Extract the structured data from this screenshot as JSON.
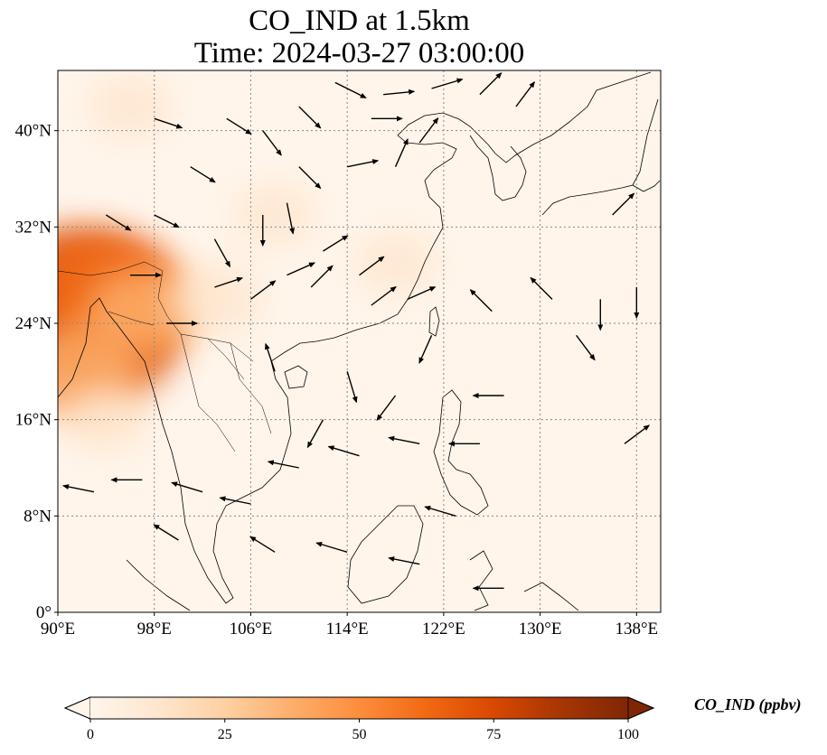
{
  "title": {
    "line1": "CO_IND at 1.5km",
    "line2": "Time: 2024-03-27 03:00:00"
  },
  "map": {
    "lon_range": [
      90,
      140
    ],
    "lat_range": [
      0,
      45
    ],
    "lon_ticks": [
      {
        "value": 90,
        "label": "90°E"
      },
      {
        "value": 98,
        "label": "98°E"
      },
      {
        "value": 106,
        "label": "106°E"
      },
      {
        "value": 114,
        "label": "114°E"
      },
      {
        "value": 122,
        "label": "122°E"
      },
      {
        "value": 130,
        "label": "130°E"
      },
      {
        "value": 138,
        "label": "138°E"
      }
    ],
    "lat_ticks": [
      {
        "value": 0,
        "label": "0°"
      },
      {
        "value": 8,
        "label": "8°N"
      },
      {
        "value": 16,
        "label": "16°N"
      },
      {
        "value": 24,
        "label": "24°N"
      },
      {
        "value": 32,
        "label": "32°N"
      },
      {
        "value": 40,
        "label": "40°N"
      }
    ],
    "gridlines": true,
    "concentration_field": [
      {
        "lon": 91.5,
        "lat": 26,
        "value": 80
      },
      {
        "lon": 93,
        "lat": 23,
        "value": 70
      },
      {
        "lon": 94,
        "lat": 26.5,
        "value": 58
      },
      {
        "lon": 92,
        "lat": 20,
        "value": 38
      },
      {
        "lon": 97,
        "lat": 25,
        "value": 32
      },
      {
        "lon": 103,
        "lat": 26,
        "value": 16
      },
      {
        "lon": 94,
        "lat": 16,
        "value": 10
      },
      {
        "lon": 108,
        "lat": 33,
        "value": 8
      },
      {
        "lon": 118,
        "lat": 29,
        "value": 7
      },
      {
        "lon": 96,
        "lat": 42,
        "value": 9
      }
    ],
    "wind_vectors": [
      {
        "lon": 113,
        "lat": 44,
        "u": 1,
        "v": -0.5
      },
      {
        "lon": 117,
        "lat": 43,
        "u": 1,
        "v": 0.1
      },
      {
        "lon": 121,
        "lat": 43.5,
        "u": 1,
        "v": 0.3
      },
      {
        "lon": 125,
        "lat": 43,
        "u": 0.7,
        "v": 0.7
      },
      {
        "lon": 128,
        "lat": 42,
        "u": 0.6,
        "v": 0.8
      },
      {
        "lon": 116,
        "lat": 41,
        "u": 1,
        "v": 0
      },
      {
        "lon": 120,
        "lat": 39,
        "u": 0.6,
        "v": 0.8
      },
      {
        "lon": 110,
        "lat": 42,
        "u": 0.7,
        "v": -0.7
      },
      {
        "lon": 104,
        "lat": 41,
        "u": 0.8,
        "v": -0.5
      },
      {
        "lon": 98,
        "lat": 41,
        "u": 0.9,
        "v": -0.3
      },
      {
        "lon": 101,
        "lat": 37,
        "u": 0.8,
        "v": -0.5
      },
      {
        "lon": 107,
        "lat": 40,
        "u": 0.6,
        "v": -0.8
      },
      {
        "lon": 110,
        "lat": 37,
        "u": 0.7,
        "v": -0.7
      },
      {
        "lon": 114,
        "lat": 37,
        "u": 1,
        "v": 0.2
      },
      {
        "lon": 118,
        "lat": 37,
        "u": 0.4,
        "v": 0.9
      },
      {
        "lon": 107,
        "lat": 33,
        "u": 0,
        "v": -1
      },
      {
        "lon": 109,
        "lat": 34,
        "u": 0.2,
        "v": -1
      },
      {
        "lon": 112,
        "lat": 30,
        "u": 0.8,
        "v": 0.5
      },
      {
        "lon": 115,
        "lat": 28,
        "u": 0.8,
        "v": 0.6
      },
      {
        "lon": 111,
        "lat": 27,
        "u": 0.7,
        "v": 0.7
      },
      {
        "lon": 116,
        "lat": 25.5,
        "u": 0.8,
        "v": 0.6
      },
      {
        "lon": 119,
        "lat": 26,
        "u": 0.9,
        "v": 0.4
      },
      {
        "lon": 103,
        "lat": 27,
        "u": 0.9,
        "v": 0.3
      },
      {
        "lon": 106,
        "lat": 26,
        "u": 0.8,
        "v": 0.6
      },
      {
        "lon": 109,
        "lat": 28,
        "u": 0.9,
        "v": 0.4
      },
      {
        "lon": 99,
        "lat": 24,
        "u": 1,
        "v": 0
      },
      {
        "lon": 96,
        "lat": 28,
        "u": 1,
        "v": 0
      },
      {
        "lon": 94,
        "lat": 33,
        "u": 0.8,
        "v": -0.5
      },
      {
        "lon": 98,
        "lat": 33,
        "u": 0.8,
        "v": -0.4
      },
      {
        "lon": 103,
        "lat": 31,
        "u": 0.5,
        "v": -0.9
      },
      {
        "lon": 114,
        "lat": 20,
        "u": 0.3,
        "v": -1
      },
      {
        "lon": 118,
        "lat": 18,
        "u": -0.6,
        "v": -0.8
      },
      {
        "lon": 112,
        "lat": 16,
        "u": -0.5,
        "v": -0.9
      },
      {
        "lon": 108,
        "lat": 20,
        "u": -0.3,
        "v": 0.9
      },
      {
        "lon": 121,
        "lat": 23,
        "u": -0.4,
        "v": -0.9
      },
      {
        "lon": 126,
        "lat": 25,
        "u": -0.7,
        "v": 0.7
      },
      {
        "lon": 131,
        "lat": 26,
        "u": -0.7,
        "v": 0.7
      },
      {
        "lon": 135,
        "lat": 26,
        "u": 0,
        "v": -1
      },
      {
        "lon": 138,
        "lat": 27,
        "u": 0,
        "v": -1
      },
      {
        "lon": 133,
        "lat": 23,
        "u": 0.6,
        "v": -0.8
      },
      {
        "lon": 127,
        "lat": 18,
        "u": -1,
        "v": 0
      },
      {
        "lon": 125,
        "lat": 14,
        "u": -1,
        "v": 0
      },
      {
        "lon": 120,
        "lat": 14,
        "u": -1,
        "v": 0.2
      },
      {
        "lon": 115,
        "lat": 13,
        "u": -1,
        "v": 0.3
      },
      {
        "lon": 110,
        "lat": 12,
        "u": -1,
        "v": 0.2
      },
      {
        "lon": 106,
        "lat": 9,
        "u": -1,
        "v": 0.2
      },
      {
        "lon": 102,
        "lat": 10,
        "u": -1,
        "v": 0.3
      },
      {
        "lon": 97,
        "lat": 11,
        "u": -1,
        "v": 0
      },
      {
        "lon": 93,
        "lat": 10,
        "u": -1,
        "v": 0.2
      },
      {
        "lon": 100,
        "lat": 6,
        "u": -0.8,
        "v": 0.5
      },
      {
        "lon": 108,
        "lat": 5,
        "u": -0.8,
        "v": 0.5
      },
      {
        "lon": 114,
        "lat": 5,
        "u": -1,
        "v": 0.3
      },
      {
        "lon": 120,
        "lat": 4,
        "u": -1,
        "v": 0.2
      },
      {
        "lon": 127,
        "lat": 2,
        "u": -1,
        "v": 0
      },
      {
        "lon": 137,
        "lat": 14,
        "u": 0.8,
        "v": 0.6
      },
      {
        "lon": 136,
        "lat": 33,
        "u": 0.7,
        "v": 0.7
      },
      {
        "lon": 123,
        "lat": 8,
        "u": -1,
        "v": 0.3
      }
    ]
  },
  "colorbar": {
    "label": "CO_IND (ppbv)",
    "min": 0,
    "max": 100,
    "ticks": [
      {
        "value": 0,
        "label": "0"
      },
      {
        "value": 25,
        "label": "25"
      },
      {
        "value": 50,
        "label": "50"
      },
      {
        "value": 75,
        "label": "75"
      },
      {
        "value": 100,
        "label": "100"
      }
    ],
    "extend": "both",
    "colors": [
      "#fff5eb",
      "#fee6ce",
      "#fdd0a2",
      "#fdae6b",
      "#fd8d3c",
      "#f16913",
      "#d94801",
      "#a63603",
      "#7f2704"
    ]
  },
  "colors": {
    "land_outline": "#000000",
    "grid": "#888888",
    "arrow": "#000000"
  }
}
